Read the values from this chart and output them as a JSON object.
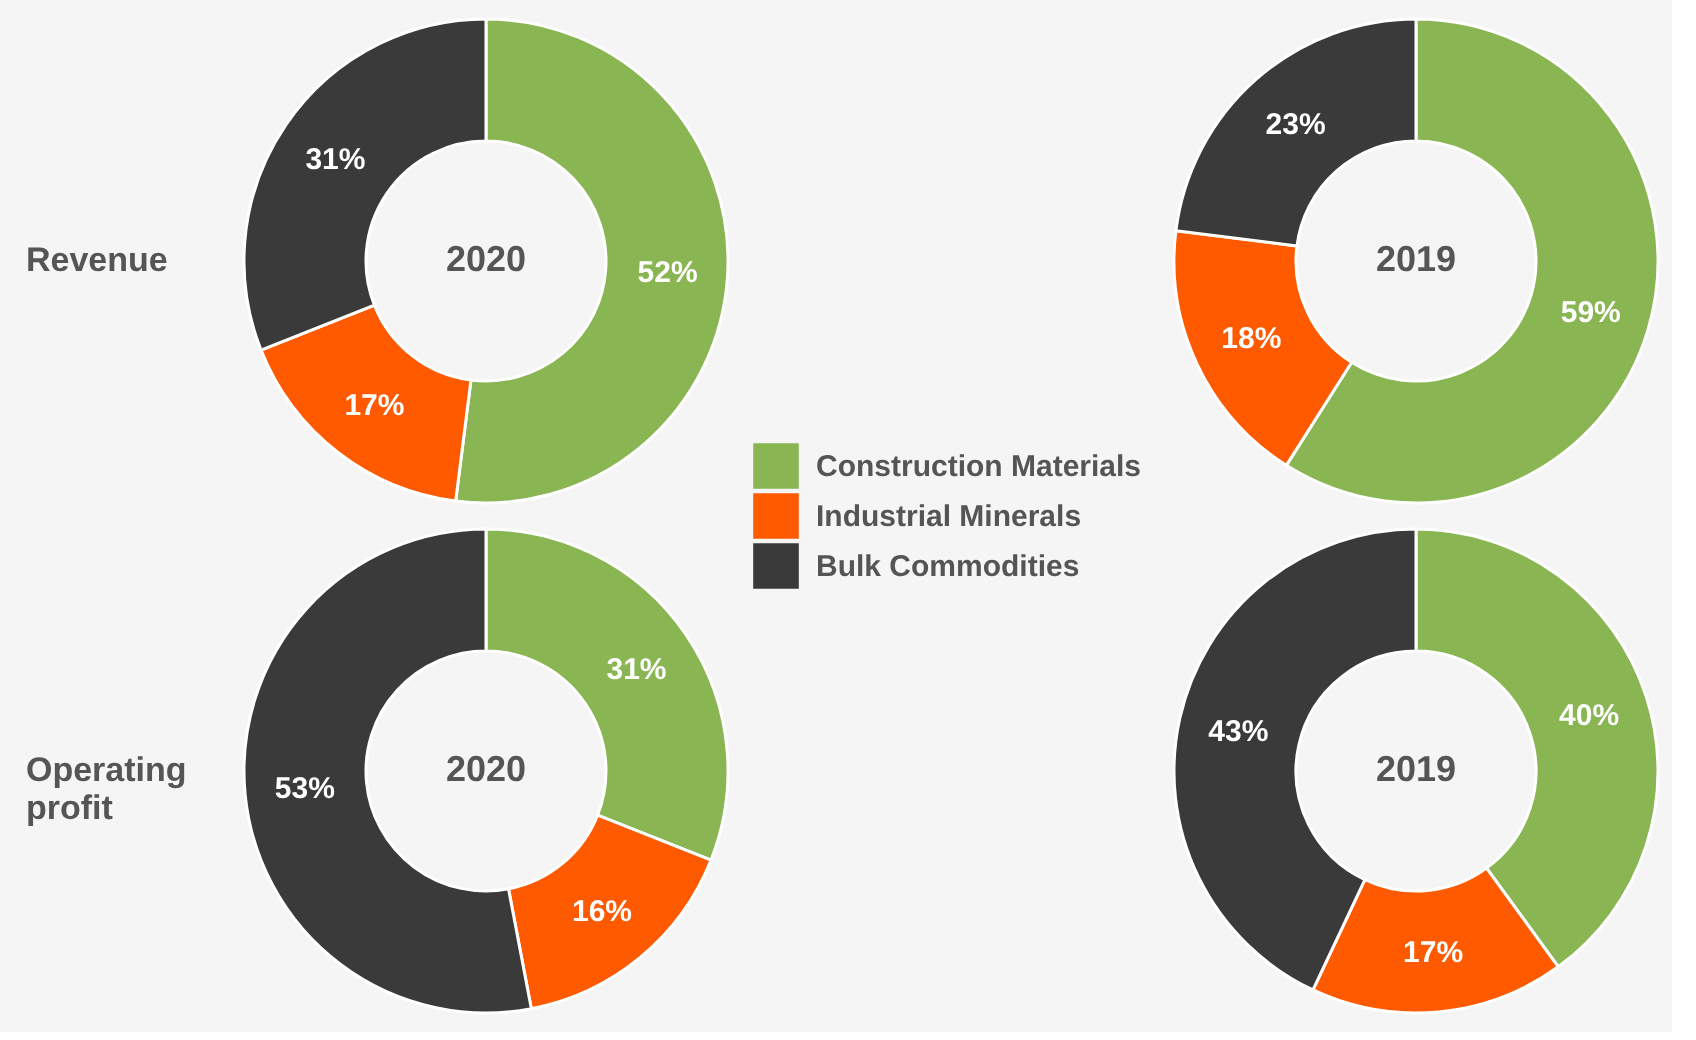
{
  "chart_data": {
    "type": "donut",
    "categories": [
      "Construction Materials",
      "Industrial Minerals",
      "Bulk Commodities"
    ],
    "colors": [
      "#8ab553",
      "#ff5a00",
      "#3a3a3a"
    ],
    "legend": "right",
    "annotations": [
      "Revenue",
      "Operating profit"
    ],
    "series": [
      {
        "name": "2020",
        "values": [
          52,
          17,
          31
        ],
        "value_labels": [
          "52%",
          "17%",
          "31%"
        ]
      },
      {
        "name": "2019",
        "values": [
          59,
          18,
          23
        ],
        "value_labels": [
          "59%",
          "18%",
          "23%"
        ]
      },
      {
        "name": "2020",
        "values": [
          31,
          16,
          53
        ],
        "value_labels": [
          "31%",
          "16%",
          "53%"
        ]
      },
      {
        "name": "2019",
        "values": [
          40,
          17,
          43
        ],
        "value_labels": [
          "40%",
          "17%",
          "43%"
        ]
      }
    ]
  }
}
